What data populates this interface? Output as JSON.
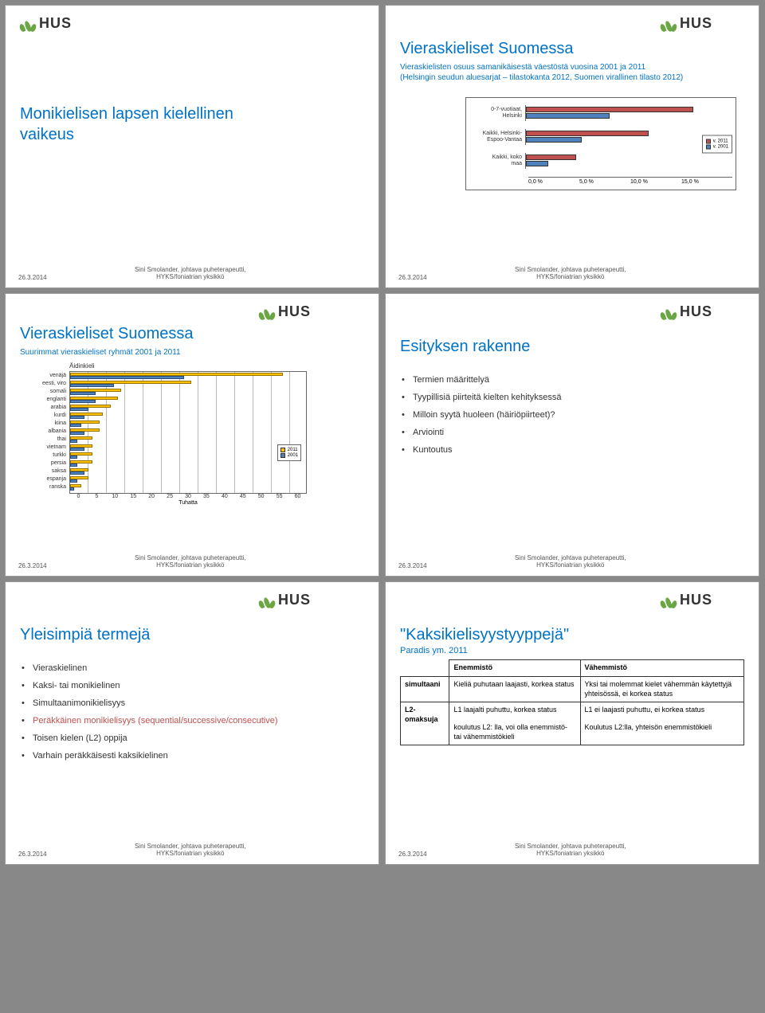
{
  "logo_text": "HUS",
  "footer": {
    "date": "26.3.2014",
    "credit1": "Sini Smolander, johtava puheterapeutti,",
    "credit2": "HYKS/foniatrian yksikkö"
  },
  "slide1": {
    "title_l1": "Monikielisen lapsen kielellinen",
    "title_l2": "vaikeus"
  },
  "slide2": {
    "title": "Vieraskieliset Suomessa",
    "sub1": "Vieraskielisten osuus samanikäisestä väestöstä vuosina 2001 ja 2011",
    "sub2": "(Helsingin seudun aluesarjat – tilastokanta 2012, Suomen virallinen tilasto 2012)",
    "chart": {
      "type": "grouped-hbar",
      "series_a_label": "v. 2011",
      "series_b_label": "v. 2001",
      "series_a_color": "#C0504D",
      "series_b_color": "#4F81BD",
      "x_ticks": [
        "0,0 %",
        "5,0 %",
        "10,0 %",
        "15,0 %"
      ],
      "x_max_pct": 15,
      "rows": [
        {
          "label_l1": "0-7-vuotiaat,",
          "label_l2": "Helsinki",
          "a": 15.0,
          "b": 7.5
        },
        {
          "label_l1": "Kaikki, Helsinki-",
          "label_l2": "Espoo-Vantaa",
          "a": 11.0,
          "b": 5.0
        },
        {
          "label_l1": "Kaikki, koko",
          "label_l2": "maa",
          "a": 4.5,
          "b": 2.0
        }
      ]
    }
  },
  "slide3": {
    "title": "Vieraskieliset Suomessa",
    "sub": "Suurimmat vieraskieliset ryhmät 2001 ja 2011",
    "chart": {
      "type": "grouped-hbar",
      "title": "Äidinkieli",
      "x_label": "Tuhatta",
      "series_a_label": "2011",
      "series_b_label": "2001",
      "series_a_color": "#FFC000",
      "series_b_color": "#4F81BD",
      "x_ticks": [
        "0",
        "5",
        "10",
        "15",
        "20",
        "25",
        "30",
        "35",
        "40",
        "45",
        "50",
        "55",
        "60"
      ],
      "x_max": 60,
      "rows": [
        {
          "label": "venäjä",
          "a": 58,
          "b": 31
        },
        {
          "label": "eesti, viro",
          "a": 33,
          "b": 12
        },
        {
          "label": "somali",
          "a": 14,
          "b": 7
        },
        {
          "label": "englanti",
          "a": 13,
          "b": 7
        },
        {
          "label": "arabia",
          "a": 11,
          "b": 5
        },
        {
          "label": "kurdi",
          "a": 9,
          "b": 4
        },
        {
          "label": "kiina",
          "a": 8,
          "b": 3
        },
        {
          "label": "albania",
          "a": 8,
          "b": 4
        },
        {
          "label": "thai",
          "a": 6,
          "b": 2
        },
        {
          "label": "vietnam",
          "a": 6,
          "b": 4
        },
        {
          "label": "turkki",
          "a": 6,
          "b": 2
        },
        {
          "label": "persia",
          "a": 6,
          "b": 2
        },
        {
          "label": "saksa",
          "a": 5,
          "b": 4
        },
        {
          "label": "espanja",
          "a": 5,
          "b": 2
        },
        {
          "label": "ranska",
          "a": 3,
          "b": 1
        }
      ]
    }
  },
  "slide4": {
    "title": "Esityksen rakenne",
    "items": [
      "Termien määrittelyä",
      "Tyypillisiä piirteitä kielten kehityksessä",
      "Milloin syytä huoleen (häiriöpiirteet)?",
      "Arviointi",
      "Kuntoutus"
    ]
  },
  "slide5": {
    "title": "Yleisimpiä termejä",
    "items": [
      {
        "t": "Vieraskielinen",
        "hl": false
      },
      {
        "t": "Kaksi- tai monikielinen",
        "hl": false
      },
      {
        "t": "Simultaanimonikielisyys",
        "hl": false
      },
      {
        "t": "Peräkkäinen monikielisyys (sequential/successive/consecutive)",
        "hl": true
      },
      {
        "t": "Toisen kielen (L2) oppija",
        "hl": false
      },
      {
        "t": "Varhain peräkkäisesti kaksikielinen",
        "hl": false
      }
    ]
  },
  "slide6": {
    "title": "\"Kaksikielisyystyyppejä\"",
    "sub": "Paradis ym. 2011",
    "table": {
      "head_col2": "Enemmistö",
      "head_col3": "Vähemmistö",
      "rows": [
        {
          "label": "simultaani",
          "c2": "Kieliä puhutaan laajasti, korkea status",
          "c3": "Yksi tai molemmat kielet vähemmän käytettyjä yhteisössä, ei korkea status"
        },
        {
          "label": "L2-omaksuja",
          "c2a": "L1 laajalti puhuttu, korkea status",
          "c2b": "koulutus L2: lla, voi olla enemmistö- tai vähemmistökieli",
          "c3a": "L1 ei laajasti puhuttu, ei korkea status",
          "c3b": "Koulutus L2:lla, yhteisön enemmistökieli"
        }
      ]
    }
  }
}
